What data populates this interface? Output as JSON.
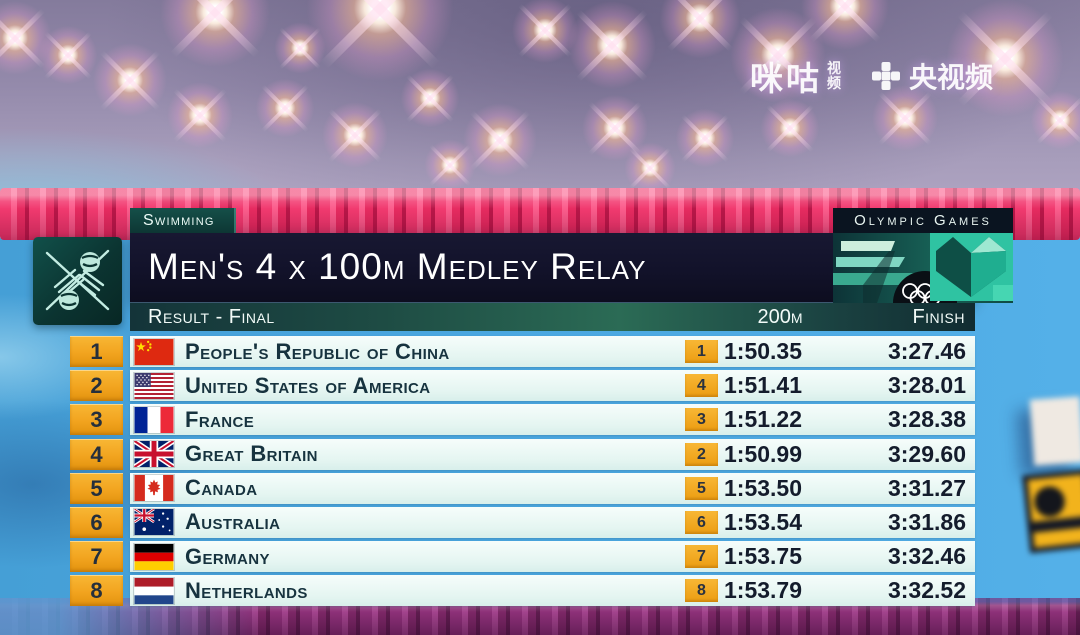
{
  "watermarks": {
    "migu_main": "咪咕",
    "migu_sub_top": "视",
    "migu_sub_bottom": "频",
    "cctv": "央视频"
  },
  "scoreboard": {
    "sport": "Swimming",
    "title": "Men's 4 x 100m Medley Relay",
    "olympic": "Olympic Games",
    "columns": {
      "result": "Result - Final",
      "split": "200m",
      "finish": "Finish"
    },
    "rows": [
      {
        "rank": "1",
        "country": "People's Republic of China",
        "flag": "cn",
        "split_rank": "1",
        "split": "1:50.35",
        "finish": "3:27.46"
      },
      {
        "rank": "2",
        "country": "United States of America",
        "flag": "us",
        "split_rank": "4",
        "split": "1:51.41",
        "finish": "3:28.01"
      },
      {
        "rank": "3",
        "country": "France",
        "flag": "fr",
        "split_rank": "3",
        "split": "1:51.22",
        "finish": "3:28.38"
      },
      {
        "rank": "4",
        "country": "Great Britain",
        "flag": "gb",
        "split_rank": "2",
        "split": "1:50.99",
        "finish": "3:29.60"
      },
      {
        "rank": "5",
        "country": "Canada",
        "flag": "ca",
        "split_rank": "5",
        "split": "1:53.50",
        "finish": "3:31.27"
      },
      {
        "rank": "6",
        "country": "Australia",
        "flag": "au",
        "split_rank": "6",
        "split": "1:53.54",
        "finish": "3:31.86"
      },
      {
        "rank": "7",
        "country": "Germany",
        "flag": "de",
        "split_rank": "7",
        "split": "1:53.75",
        "finish": "3:32.46"
      },
      {
        "rank": "8",
        "country": "Netherlands",
        "flag": "nl",
        "split_rank": "8",
        "split": "1:53.79",
        "finish": "3:32.52"
      }
    ]
  },
  "colors": {
    "accent_orange": "#F2A41F",
    "row_background": "#E8F7F4",
    "header_teal": "#2B6B55",
    "panel_navy": "#12122A",
    "tab_teal": "#0D3734",
    "rope_pink": "#F13A6F",
    "rope_purple": "#8D3078",
    "pool_blue": "#4AA7E0"
  }
}
